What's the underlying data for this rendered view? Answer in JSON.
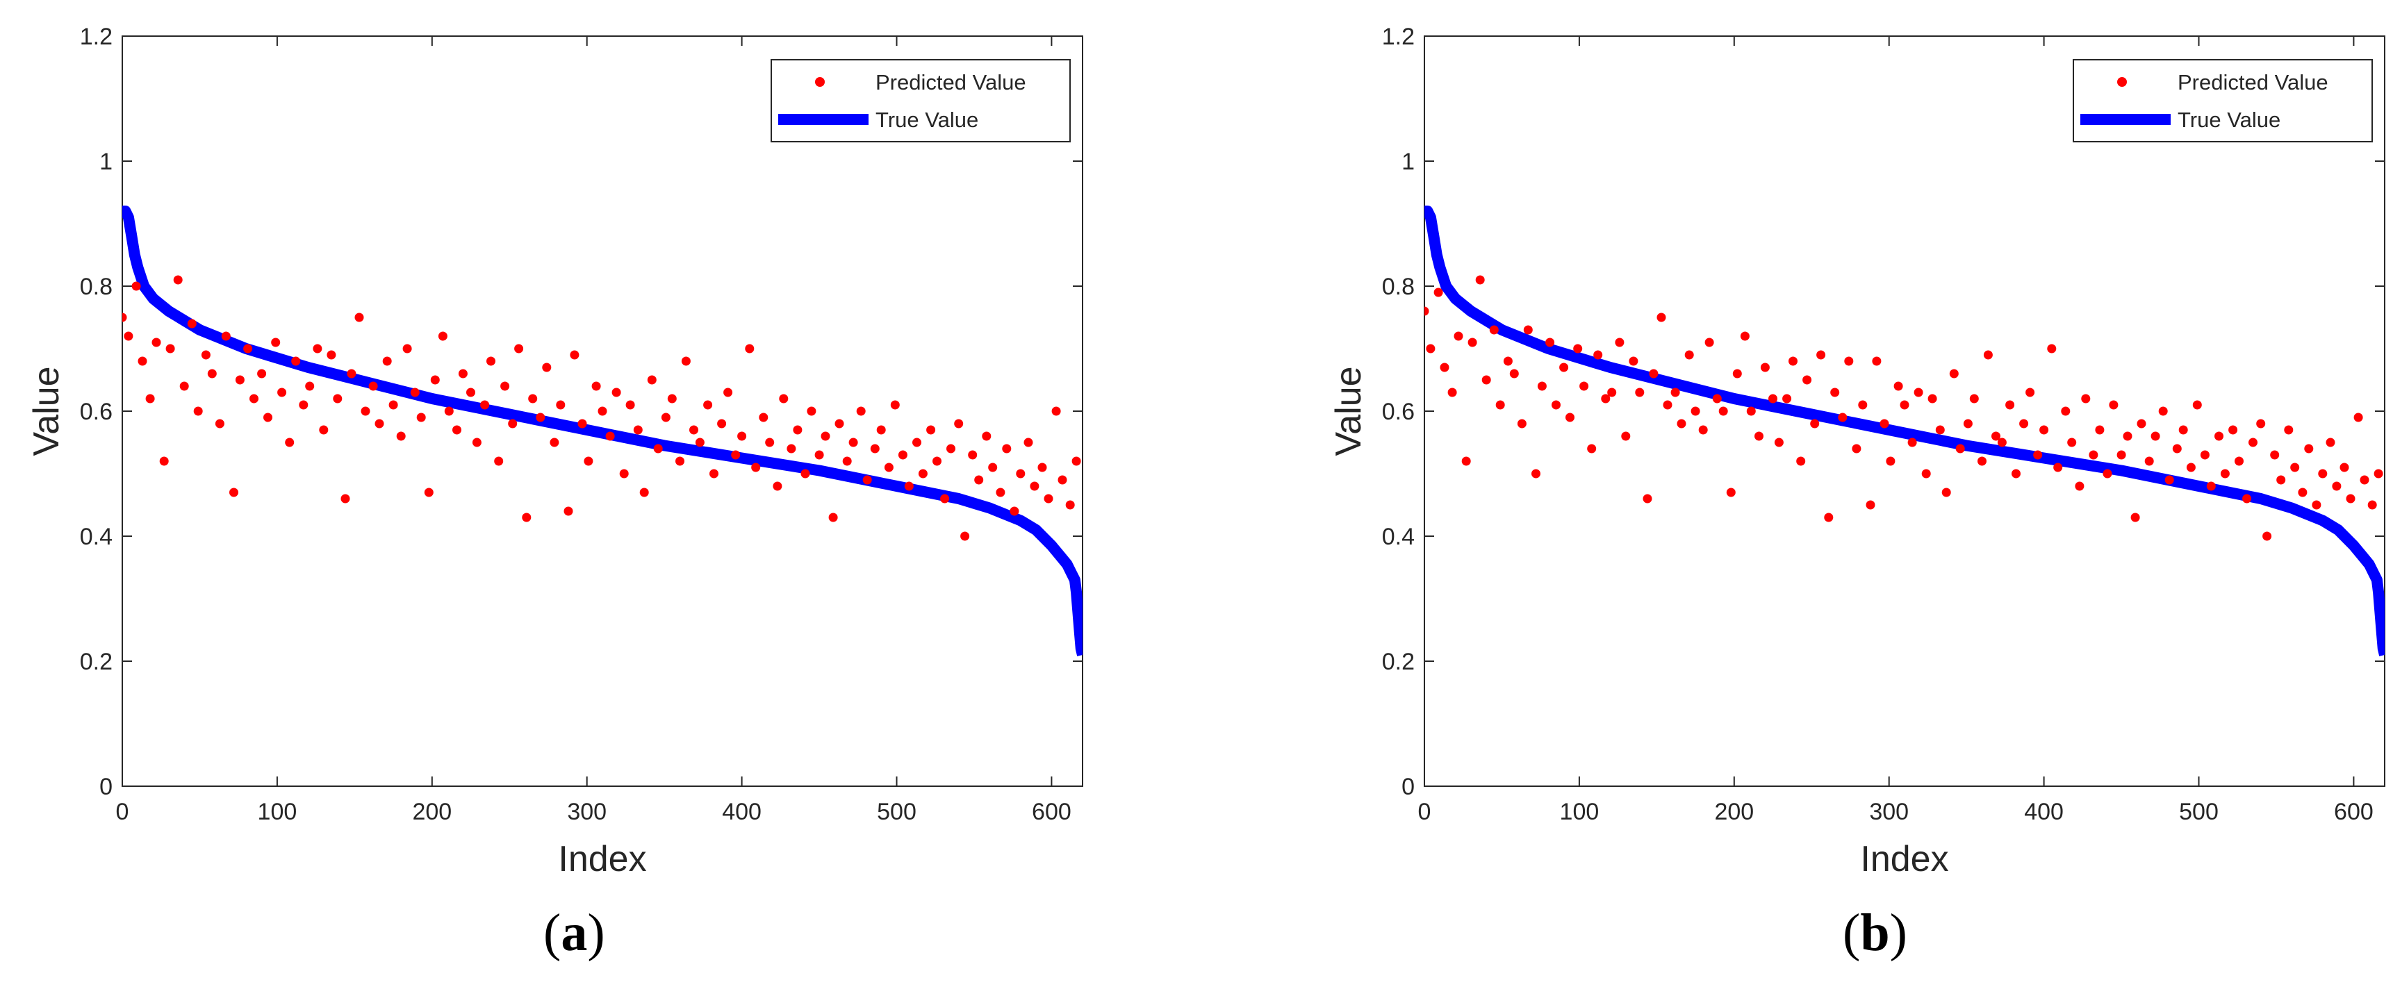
{
  "chart_data": [
    {
      "type": "scatter",
      "panel": "a",
      "title": "",
      "xlabel": "Index",
      "ylabel": "Value",
      "xlim": [
        0,
        620
      ],
      "ylim": [
        0,
        1.2
      ],
      "xticks": [
        0,
        100,
        200,
        300,
        400,
        500,
        600
      ],
      "yticks": [
        0,
        0.2,
        0.4,
        0.6,
        0.8,
        1,
        1.2
      ],
      "ytick_labels": [
        "0",
        "0.2",
        "0.4",
        "0.6",
        "0.8",
        "1",
        "1.2"
      ],
      "legend_position": "top-right",
      "series": [
        {
          "name": "Predicted Value",
          "kind": "scatter",
          "color": "#ff0000",
          "x": [
            0,
            4,
            9,
            13,
            18,
            22,
            27,
            31,
            36,
            40,
            45,
            49,
            54,
            58,
            63,
            67,
            72,
            76,
            81,
            85,
            90,
            94,
            99,
            103,
            108,
            112,
            117,
            121,
            126,
            130,
            135,
            139,
            144,
            148,
            153,
            157,
            162,
            166,
            171,
            175,
            180,
            184,
            189,
            193,
            198,
            202,
            207,
            211,
            216,
            220,
            225,
            229,
            234,
            238,
            243,
            247,
            252,
            256,
            261,
            265,
            270,
            274,
            279,
            283,
            288,
            292,
            297,
            301,
            306,
            310,
            315,
            319,
            324,
            328,
            333,
            337,
            342,
            346,
            351,
            355,
            360,
            364,
            369,
            373,
            378,
            382,
            387,
            391,
            396,
            400,
            405,
            409,
            414,
            418,
            423,
            427,
            432,
            436,
            441,
            445,
            450,
            454,
            459,
            463,
            468,
            472,
            477,
            481,
            486,
            490,
            495,
            499,
            504,
            508,
            513,
            517,
            522,
            526,
            531,
            535,
            540,
            544,
            549,
            553,
            558,
            562,
            567,
            571,
            576,
            580,
            585,
            589,
            594,
            598,
            603,
            607,
            612,
            616
          ],
          "y": [
            0.75,
            0.72,
            0.8,
            0.68,
            0.62,
            0.71,
            0.52,
            0.7,
            0.81,
            0.64,
            0.74,
            0.6,
            0.69,
            0.66,
            0.58,
            0.72,
            0.47,
            0.65,
            0.7,
            0.62,
            0.66,
            0.59,
            0.71,
            0.63,
            0.55,
            0.68,
            0.61,
            0.64,
            0.7,
            0.57,
            0.69,
            0.62,
            0.46,
            0.66,
            0.75,
            0.6,
            0.64,
            0.58,
            0.68,
            0.61,
            0.56,
            0.7,
            0.63,
            0.59,
            0.47,
            0.65,
            0.72,
            0.6,
            0.57,
            0.66,
            0.63,
            0.55,
            0.61,
            0.68,
            0.52,
            0.64,
            0.58,
            0.7,
            0.43,
            0.62,
            0.59,
            0.67,
            0.55,
            0.61,
            0.44,
            0.69,
            0.58,
            0.52,
            0.64,
            0.6,
            0.56,
            0.63,
            0.5,
            0.61,
            0.57,
            0.47,
            0.65,
            0.54,
            0.59,
            0.62,
            0.52,
            0.68,
            0.57,
            0.55,
            0.61,
            0.5,
            0.58,
            0.63,
            0.53,
            0.56,
            0.7,
            0.51,
            0.59,
            0.55,
            0.48,
            0.62,
            0.54,
            0.57,
            0.5,
            0.6,
            0.53,
            0.56,
            0.43,
            0.58,
            0.52,
            0.55,
            0.6,
            0.49,
            0.54,
            0.57,
            0.51,
            0.61,
            0.53,
            0.48,
            0.55,
            0.5,
            0.57,
            0.52,
            0.46,
            0.54,
            0.58,
            0.4,
            0.53,
            0.49,
            0.56,
            0.51,
            0.47,
            0.54,
            0.44,
            0.5,
            0.55,
            0.48,
            0.51,
            0.46,
            0.6,
            0.49,
            0.45,
            0.52
          ]
        },
        {
          "name": "True Value",
          "kind": "line",
          "color": "#0000ff",
          "x": [
            0,
            2,
            4,
            6,
            8,
            10,
            14,
            20,
            30,
            50,
            80,
            120,
            160,
            200,
            250,
            300,
            350,
            400,
            450,
            500,
            540,
            560,
            580,
            590,
            600,
            605,
            610,
            613,
            615,
            616,
            617,
            618,
            619,
            620
          ],
          "y": [
            0.92,
            0.92,
            0.91,
            0.88,
            0.85,
            0.83,
            0.8,
            0.78,
            0.76,
            0.73,
            0.7,
            0.67,
            0.645,
            0.62,
            0.595,
            0.57,
            0.545,
            0.525,
            0.505,
            0.48,
            0.46,
            0.445,
            0.425,
            0.41,
            0.385,
            0.37,
            0.355,
            0.34,
            0.33,
            0.31,
            0.28,
            0.25,
            0.22,
            0.21
          ]
        }
      ]
    },
    {
      "type": "scatter",
      "panel": "b",
      "title": "",
      "xlabel": "Index",
      "ylabel": "Value",
      "xlim": [
        0,
        620
      ],
      "ylim": [
        0,
        1.2
      ],
      "xticks": [
        0,
        100,
        200,
        300,
        400,
        500,
        600
      ],
      "yticks": [
        0,
        0.2,
        0.4,
        0.6,
        0.8,
        1,
        1.2
      ],
      "ytick_labels": [
        "0",
        "0.2",
        "0.4",
        "0.6",
        "0.8",
        "1",
        "1.2"
      ],
      "legend_position": "top-right",
      "series": [
        {
          "name": "Predicted Value",
          "kind": "scatter",
          "color": "#ff0000",
          "x": [
            0,
            4,
            9,
            13,
            18,
            22,
            27,
            31,
            36,
            40,
            45,
            49,
            54,
            58,
            63,
            67,
            72,
            76,
            81,
            85,
            90,
            94,
            99,
            103,
            108,
            112,
            117,
            121,
            126,
            130,
            135,
            139,
            144,
            148,
            153,
            157,
            162,
            166,
            171,
            175,
            180,
            184,
            189,
            193,
            198,
            202,
            207,
            211,
            216,
            220,
            225,
            229,
            234,
            238,
            243,
            247,
            252,
            256,
            261,
            265,
            270,
            274,
            279,
            283,
            288,
            292,
            297,
            301,
            306,
            310,
            315,
            319,
            324,
            328,
            333,
            337,
            342,
            346,
            351,
            355,
            360,
            364,
            369,
            373,
            378,
            382,
            387,
            391,
            396,
            400,
            405,
            409,
            414,
            418,
            423,
            427,
            432,
            436,
            441,
            445,
            450,
            454,
            459,
            463,
            468,
            472,
            477,
            481,
            486,
            490,
            495,
            499,
            504,
            508,
            513,
            517,
            522,
            526,
            531,
            535,
            540,
            544,
            549,
            553,
            558,
            562,
            567,
            571,
            576,
            580,
            585,
            589,
            594,
            598,
            603,
            607,
            612,
            616
          ],
          "y": [
            0.76,
            0.7,
            0.79,
            0.67,
            0.63,
            0.72,
            0.52,
            0.71,
            0.81,
            0.65,
            0.73,
            0.61,
            0.68,
            0.66,
            0.58,
            0.73,
            0.5,
            0.64,
            0.71,
            0.61,
            0.67,
            0.59,
            0.7,
            0.64,
            0.54,
            0.69,
            0.62,
            0.63,
            0.71,
            0.56,
            0.68,
            0.63,
            0.46,
            0.66,
            0.75,
            0.61,
            0.63,
            0.58,
            0.69,
            0.6,
            0.57,
            0.71,
            0.62,
            0.6,
            0.47,
            0.66,
            0.72,
            0.6,
            0.56,
            0.67,
            0.62,
            0.55,
            0.62,
            0.68,
            0.52,
            0.65,
            0.58,
            0.69,
            0.43,
            0.63,
            0.59,
            0.68,
            0.54,
            0.61,
            0.45,
            0.68,
            0.58,
            0.52,
            0.64,
            0.61,
            0.55,
            0.63,
            0.5,
            0.62,
            0.57,
            0.47,
            0.66,
            0.54,
            0.58,
            0.62,
            0.52,
            0.69,
            0.56,
            0.55,
            0.61,
            0.5,
            0.58,
            0.63,
            0.53,
            0.57,
            0.7,
            0.51,
            0.6,
            0.55,
            0.48,
            0.62,
            0.53,
            0.57,
            0.5,
            0.61,
            0.53,
            0.56,
            0.43,
            0.58,
            0.52,
            0.56,
            0.6,
            0.49,
            0.54,
            0.57,
            0.51,
            0.61,
            0.53,
            0.48,
            0.56,
            0.5,
            0.57,
            0.52,
            0.46,
            0.55,
            0.58,
            0.4,
            0.53,
            0.49,
            0.57,
            0.51,
            0.47,
            0.54,
            0.45,
            0.5,
            0.55,
            0.48,
            0.51,
            0.46,
            0.59,
            0.49,
            0.45,
            0.5
          ]
        },
        {
          "name": "True Value",
          "kind": "line",
          "color": "#0000ff",
          "x": [
            0,
            2,
            4,
            6,
            8,
            10,
            14,
            20,
            30,
            50,
            80,
            120,
            160,
            200,
            250,
            300,
            350,
            400,
            450,
            500,
            540,
            560,
            580,
            590,
            600,
            605,
            610,
            613,
            615,
            616,
            617,
            618,
            619,
            620
          ],
          "y": [
            0.92,
            0.92,
            0.91,
            0.88,
            0.85,
            0.83,
            0.8,
            0.78,
            0.76,
            0.73,
            0.7,
            0.67,
            0.645,
            0.62,
            0.595,
            0.57,
            0.545,
            0.525,
            0.505,
            0.48,
            0.46,
            0.445,
            0.425,
            0.41,
            0.385,
            0.37,
            0.355,
            0.34,
            0.33,
            0.31,
            0.28,
            0.25,
            0.22,
            0.21
          ]
        }
      ]
    }
  ]
}
